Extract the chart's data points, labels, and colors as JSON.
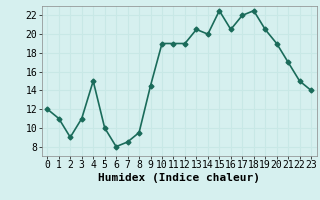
{
  "x": [
    0,
    1,
    2,
    3,
    4,
    5,
    6,
    7,
    8,
    9,
    10,
    11,
    12,
    13,
    14,
    15,
    16,
    17,
    18,
    19,
    20,
    21,
    22,
    23
  ],
  "y": [
    12,
    11,
    9,
    11,
    15,
    10,
    8,
    8.5,
    9.5,
    14.5,
    19,
    19,
    19,
    20.5,
    20,
    22.5,
    20.5,
    22,
    22.5,
    20.5,
    19,
    17,
    15,
    14
  ],
  "line_color": "#1a6b5a",
  "marker": "D",
  "marker_size": 2.5,
  "bg_color": "#d6f0ef",
  "grid_color": "#c8e8e6",
  "xlabel": "Humidex (Indice chaleur)",
  "ylim": [
    7,
    23
  ],
  "xlim": [
    -0.5,
    23.5
  ],
  "yticks": [
    8,
    10,
    12,
    14,
    16,
    18,
    20,
    22
  ],
  "xticks": [
    0,
    1,
    2,
    3,
    4,
    5,
    6,
    7,
    8,
    9,
    10,
    11,
    12,
    13,
    14,
    15,
    16,
    17,
    18,
    19,
    20,
    21,
    22,
    23
  ],
  "xlabel_fontsize": 8,
  "tick_fontsize": 7,
  "line_width": 1.2
}
